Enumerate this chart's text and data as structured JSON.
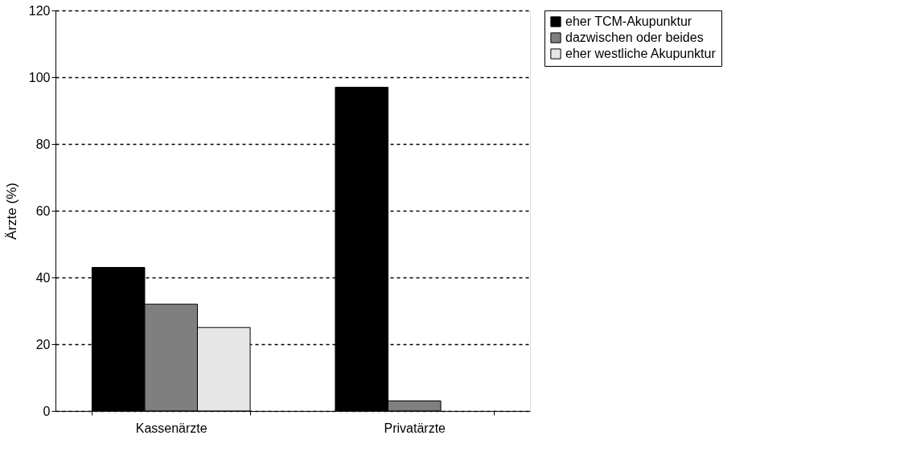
{
  "chart_data": {
    "type": "bar",
    "ylabel": "Ärzte (%)",
    "categories": [
      "Kassenärzte",
      "Privatärzte"
    ],
    "series": [
      {
        "name": "eher TCM-Akupunktur",
        "color": "#000000",
        "values": [
          43,
          97
        ]
      },
      {
        "name": "dazwischen oder beides",
        "color": "#7f7f7f",
        "values": [
          32,
          3
        ]
      },
      {
        "name": "eher westliche Akupunktur",
        "color": "#e6e6e6",
        "values": [
          25,
          null
        ]
      }
    ],
    "ylim": [
      0,
      120
    ],
    "yticks": [
      0,
      20,
      40,
      60,
      80,
      100,
      120
    ],
    "grid": "y",
    "legend": "right"
  }
}
